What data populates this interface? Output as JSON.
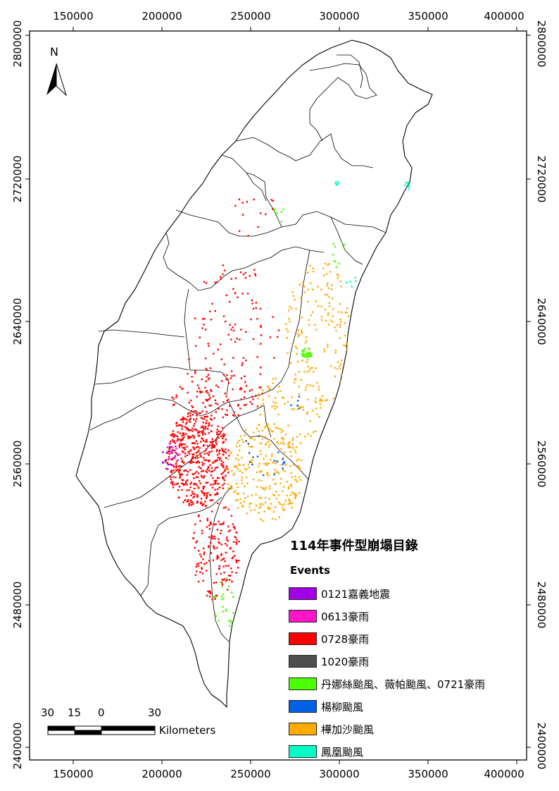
{
  "map": {
    "title": "114年事件型崩塌目錄",
    "legend_heading": "Events",
    "events": [
      {
        "label": "0121嘉義地震",
        "color": "#a100e6"
      },
      {
        "label": "0613豪雨",
        "color": "#ff14c8"
      },
      {
        "label": "0728豪雨",
        "color": "#ff0000"
      },
      {
        "label": "1020豪雨",
        "color": "#4e4e4e"
      },
      {
        "label": "丹娜絲颱風、薇帕颱風、0721豪雨",
        "color": "#4cff00"
      },
      {
        "label": "楊柳颱風",
        "color": "#0060e6"
      },
      {
        "label": "樺加沙颱風",
        "color": "#ffaa00"
      },
      {
        "label": "鳳凰颱風",
        "color": "#00ffc5"
      }
    ],
    "x_ticks": [
      "150000",
      "200000",
      "250000",
      "300000",
      "350000",
      "400000"
    ],
    "y_ticks": [
      "2800000",
      "2720000",
      "2640000",
      "2560000",
      "2480000",
      "2400000"
    ],
    "north_label": "N",
    "scale": {
      "labels": [
        "30",
        "15",
        "0",
        "30"
      ],
      "unit": "Kilometers"
    }
  }
}
